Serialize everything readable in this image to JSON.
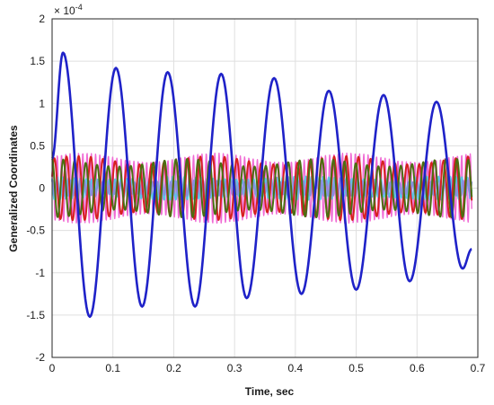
{
  "chart_data": {
    "type": "line",
    "title": "",
    "xlabel": "Time, sec",
    "ylabel": "Generalized Coordinates",
    "exponent_label": "× 10",
    "exponent_power": "-4",
    "xlim": [
      0,
      0.7
    ],
    "ylim": [
      -2,
      2
    ],
    "y_scale_factor": 0.0001,
    "xticks": [
      0,
      0.1,
      0.2,
      0.3,
      0.4,
      0.5,
      0.6,
      0.7
    ],
    "xtick_labels": [
      "0",
      "0.1",
      "0.2",
      "0.3",
      "0.4",
      "0.5",
      "0.6",
      "0.7"
    ],
    "yticks": [
      -2,
      -1.5,
      -1,
      -0.5,
      0,
      0.5,
      1,
      1.5,
      2
    ],
    "ytick_labels": [
      "-2",
      "-1.5",
      "-1",
      "-0.5",
      "0",
      "0.5",
      "1",
      "1.5",
      "2"
    ],
    "grid": true,
    "x_end": 0.69,
    "series": [
      {
        "color": "#1f22c8",
        "description": "large damped oscillation",
        "peaks": [
          {
            "x": 0.018,
            "y": 1.6
          },
          {
            "x": 0.062,
            "y": -1.52
          },
          {
            "x": 0.105,
            "y": 1.42
          },
          {
            "x": 0.148,
            "y": -1.4
          },
          {
            "x": 0.19,
            "y": 1.37
          },
          {
            "x": 0.235,
            "y": -1.4
          },
          {
            "x": 0.278,
            "y": 1.35
          },
          {
            "x": 0.32,
            "y": -1.3
          },
          {
            "x": 0.365,
            "y": 1.3
          },
          {
            "x": 0.41,
            "y": -1.25
          },
          {
            "x": 0.455,
            "y": 1.15
          },
          {
            "x": 0.5,
            "y": -1.2
          },
          {
            "x": 0.545,
            "y": 1.1
          },
          {
            "x": 0.588,
            "y": -1.1
          },
          {
            "x": 0.632,
            "y": 1.02
          },
          {
            "x": 0.675,
            "y": -0.95
          },
          {
            "x": 0.69,
            "y": -0.72
          }
        ]
      },
      {
        "color": "#d62020",
        "description": "medium-frequency oscillation",
        "amplitude": 0.33,
        "period": 0.02,
        "phase": 0.4
      },
      {
        "color": "#4a6e10",
        "description": "medium-frequency oscillation with beating",
        "amplitude": 0.3,
        "period": 0.0185,
        "phase": 1.6
      },
      {
        "color": "#f06ad4",
        "description": "high-frequency oscillation",
        "amplitude": 0.36,
        "period": 0.007,
        "phase": 0.2
      },
      {
        "color": "#5cc3e6",
        "description": "small high-frequency oscillation",
        "amplitude": 0.12,
        "period": 0.0095,
        "phase": 2.2
      },
      {
        "color": "#8a8ee0",
        "description": "small high-frequency oscillation",
        "amplitude": 0.08,
        "period": 0.0075,
        "phase": 1.0
      }
    ]
  }
}
